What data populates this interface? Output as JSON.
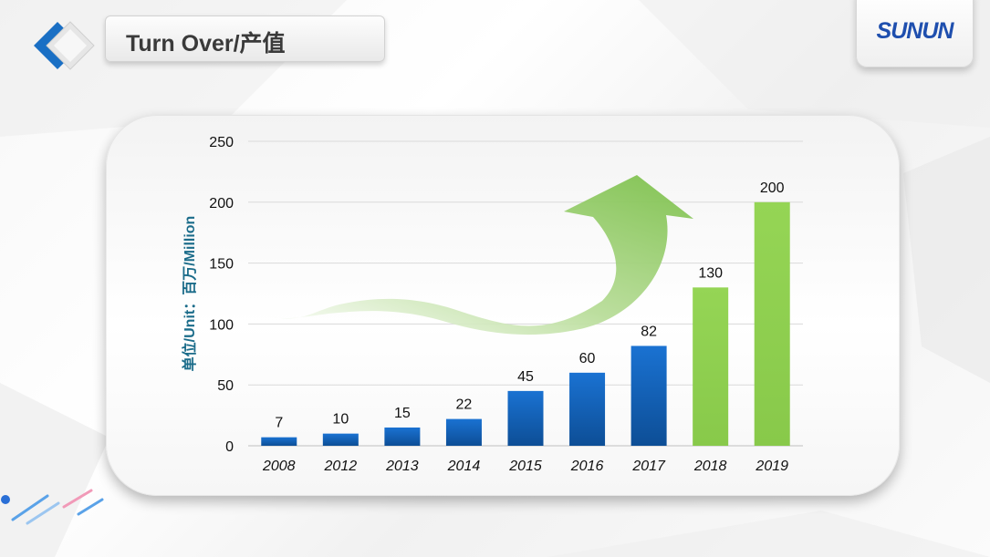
{
  "header": {
    "title": "Turn Over/产值",
    "logo_text": "SUNUN"
  },
  "colors": {
    "bar_blue": "#1565c0",
    "bar_green": "#92d050",
    "arrow_green": "#7cc04a",
    "axis_title": "#1b6c8a"
  },
  "chart_data": {
    "type": "bar",
    "title": "",
    "xlabel": "",
    "ylabel": "单位/Unit：百万/Million",
    "categories": [
      "2008",
      "2012",
      "2013",
      "2014",
      "2015",
      "2016",
      "2017",
      "2018",
      "2019"
    ],
    "values": [
      7,
      10,
      15,
      22,
      45,
      60,
      82,
      130,
      200
    ],
    "bar_colors": [
      "blue",
      "blue",
      "blue",
      "blue",
      "blue",
      "blue",
      "blue",
      "green",
      "green"
    ],
    "data_labels": [
      "7",
      "10",
      "15",
      "22",
      "45",
      "60",
      "82",
      "130",
      "200"
    ],
    "yticks": [
      "0",
      "50",
      "100",
      "150",
      "200",
      "250"
    ],
    "ylim": [
      0,
      250
    ],
    "grid": true,
    "legend": "none",
    "annotation": "green upward trend arrow"
  }
}
